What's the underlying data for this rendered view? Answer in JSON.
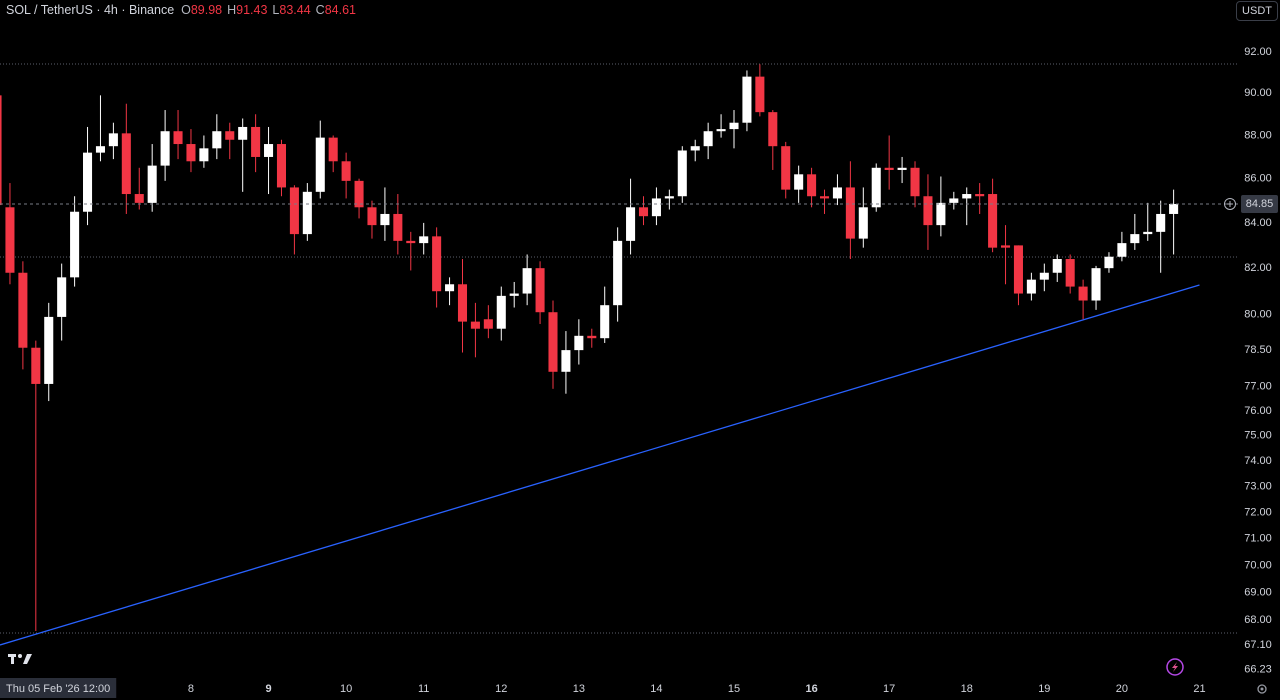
{
  "chart_data": {
    "type": "candlestick",
    "title": "SOL / TetherUS · 4h · Binance",
    "ohlc_legend": {
      "labels": [
        "O",
        "H",
        "L",
        "C"
      ],
      "values": [
        89.98,
        91.43,
        83.44,
        84.61
      ]
    },
    "currency": "USDT",
    "log_scale": true,
    "grid": false,
    "up_color": "#ffffff",
    "down_color": "#f23645",
    "x": [
      0,
      1,
      2,
      3,
      4,
      5,
      6,
      7,
      8,
      9,
      10,
      11,
      12,
      13,
      14,
      15,
      16,
      17,
      18,
      19,
      20,
      21,
      22,
      23,
      24,
      25,
      26,
      27,
      28,
      29,
      30,
      31,
      32,
      33,
      34,
      35,
      36,
      37,
      38,
      39,
      40,
      41,
      42,
      43,
      44,
      45,
      46,
      47,
      48,
      49,
      50,
      51,
      52,
      53,
      54,
      55,
      56,
      57,
      58,
      59,
      60,
      61,
      62,
      63,
      64,
      65,
      66,
      67,
      68,
      69,
      70,
      71,
      72,
      73,
      74,
      75,
      76,
      77,
      78,
      79,
      80,
      81,
      82,
      83,
      84,
      85,
      86,
      87,
      88,
      89,
      90,
      91
    ],
    "open": [
      89.9,
      84.7,
      81.8,
      78.6,
      77.1,
      79.9,
      81.6,
      84.5,
      87.2,
      87.5,
      88.1,
      85.3,
      84.9,
      86.6,
      88.2,
      87.6,
      86.8,
      87.4,
      88.2,
      87.8,
      88.4,
      87.0,
      87.6,
      85.6,
      83.5,
      85.4,
      87.9,
      86.8,
      85.9,
      84.7,
      83.9,
      84.4,
      83.2,
      83.1,
      83.4,
      81.0,
      81.3,
      79.7,
      79.8,
      79.4,
      80.8,
      80.9,
      82.0,
      80.1,
      77.6,
      78.5,
      79.1,
      79.0,
      80.4,
      83.2,
      84.7,
      84.3,
      85.1,
      85.2,
      87.3,
      87.5,
      88.2,
      88.3,
      88.6,
      90.8,
      89.1,
      87.5,
      85.5,
      86.2,
      85.2,
      85.1,
      85.6,
      83.3,
      84.7,
      86.5,
      86.4,
      86.5,
      85.2,
      83.9,
      84.9,
      85.1,
      85.3,
      85.3,
      83.0,
      83.0,
      80.9,
      81.5,
      81.8,
      82.4,
      81.2,
      80.6,
      82.0,
      82.5,
      83.1,
      83.5,
      83.6,
      84.4
    ],
    "high": [
      90.5,
      85.8,
      82.3,
      78.9,
      80.5,
      82.2,
      85.2,
      88.4,
      89.9,
      88.6,
      89.5,
      86.5,
      87.6,
      89.2,
      89.2,
      88.3,
      88.0,
      89.0,
      88.6,
      88.8,
      89.0,
      88.4,
      87.8,
      85.7,
      85.8,
      88.7,
      88.0,
      87.2,
      86.0,
      85.0,
      85.6,
      85.3,
      83.6,
      84.0,
      83.8,
      81.6,
      82.4,
      80.5,
      80.4,
      81.2,
      81.4,
      82.6,
      82.3,
      80.6,
      79.3,
      79.8,
      79.4,
      81.2,
      83.8,
      86.0,
      85.2,
      85.6,
      85.5,
      87.5,
      87.8,
      88.6,
      89.0,
      89.2,
      91.1,
      91.4,
      89.2,
      87.7,
      86.6,
      86.5,
      85.5,
      86.2,
      86.8,
      85.6,
      86.7,
      88.0,
      87.0,
      86.8,
      86.2,
      86.1,
      85.4,
      85.6,
      85.8,
      86.0,
      83.9,
      83.0,
      81.8,
      82.2,
      82.6,
      82.6,
      81.5,
      82.1,
      82.7,
      83.6,
      84.4,
      84.9,
      85.0,
      85.5
    ],
    "low": [
      84.5,
      81.3,
      77.7,
      67.6,
      76.4,
      78.9,
      81.2,
      83.9,
      86.8,
      86.9,
      84.4,
      84.6,
      84.5,
      85.9,
      86.9,
      86.3,
      86.5,
      86.9,
      86.9,
      85.4,
      86.3,
      85.3,
      85.2,
      82.6,
      83.2,
      85.1,
      86.3,
      85.1,
      84.2,
      83.3,
      83.2,
      82.6,
      81.9,
      82.6,
      80.3,
      80.4,
      78.4,
      78.2,
      79.0,
      78.9,
      80.3,
      80.4,
      79.6,
      76.9,
      76.7,
      77.9,
      78.6,
      78.8,
      79.7,
      82.6,
      83.9,
      83.9,
      84.6,
      84.9,
      86.8,
      86.9,
      87.9,
      87.4,
      88.2,
      88.9,
      86.4,
      85.1,
      84.9,
      84.7,
      84.4,
      84.8,
      82.4,
      82.9,
      84.5,
      85.5,
      85.8,
      84.7,
      82.8,
      83.4,
      84.6,
      83.9,
      84.4,
      82.7,
      81.3,
      80.4,
      80.6,
      81.0,
      81.4,
      80.9,
      79.8,
      80.2,
      81.8,
      82.3,
      82.8,
      83.2,
      81.8,
      82.6
    ],
    "close": [
      84.8,
      81.8,
      78.6,
      77.1,
      79.9,
      81.6,
      84.5,
      87.2,
      87.5,
      88.1,
      85.3,
      84.9,
      86.6,
      88.2,
      87.6,
      86.8,
      87.4,
      88.2,
      87.8,
      88.4,
      87.0,
      87.6,
      85.6,
      83.5,
      85.4,
      87.9,
      86.8,
      85.9,
      84.7,
      83.9,
      84.4,
      83.2,
      83.1,
      83.4,
      81.0,
      81.3,
      79.7,
      79.4,
      79.4,
      80.8,
      80.9,
      82.0,
      80.1,
      77.6,
      78.5,
      79.1,
      79.0,
      80.4,
      83.2,
      84.7,
      84.3,
      85.1,
      85.2,
      87.3,
      87.5,
      88.2,
      88.3,
      88.6,
      90.8,
      89.1,
      87.5,
      85.5,
      86.2,
      85.2,
      85.1,
      85.6,
      83.3,
      84.7,
      86.5,
      86.4,
      86.5,
      85.2,
      83.9,
      84.9,
      85.1,
      85.3,
      85.2,
      82.9,
      82.9,
      80.9,
      81.5,
      81.8,
      82.4,
      81.2,
      80.6,
      82.0,
      82.5,
      83.1,
      83.5,
      83.6,
      84.4,
      84.85
    ],
    "xlim": [
      0.23,
      95.98
    ],
    "ylim": [
      66.0,
      94.58
    ],
    "yticks": [
      {
        "value": 92,
        "label": "92.00"
      },
      {
        "value": 90,
        "label": "90.00"
      },
      {
        "value": 88,
        "label": "88.00"
      },
      {
        "value": 86,
        "label": "86.00"
      },
      {
        "value": 84,
        "label": "84.00"
      },
      {
        "value": 82,
        "label": "82.00"
      },
      {
        "value": 80,
        "label": "80.00"
      },
      {
        "value": 78.5,
        "label": "78.50"
      },
      {
        "value": 77,
        "label": "77.00"
      },
      {
        "value": 76,
        "label": "76.00"
      },
      {
        "value": 75,
        "label": "75.00"
      },
      {
        "value": 74,
        "label": "74.00"
      },
      {
        "value": 73,
        "label": "73.00"
      },
      {
        "value": 72,
        "label": "72.00"
      },
      {
        "value": 71,
        "label": "71.00"
      },
      {
        "value": 70,
        "label": "70.00"
      },
      {
        "value": 69,
        "label": "69.00"
      },
      {
        "value": 68,
        "label": "68.00"
      },
      {
        "value": 67.1,
        "label": "67.10"
      },
      {
        "value": 66.23,
        "label": "66.23"
      }
    ],
    "xticks": [
      {
        "value": 0,
        "label": "Thu 05 Feb '26   12:00",
        "highlight": true
      },
      {
        "value": 15,
        "label": "8"
      },
      {
        "value": 21,
        "label": "9",
        "bold": true
      },
      {
        "value": 27,
        "label": "10"
      },
      {
        "value": 33,
        "label": "11"
      },
      {
        "value": 39,
        "label": "12"
      },
      {
        "value": 45,
        "label": "13"
      },
      {
        "value": 51,
        "label": "14"
      },
      {
        "value": 57,
        "label": "15"
      },
      {
        "value": 63,
        "label": "16",
        "bold": true
      },
      {
        "value": 69,
        "label": "17"
      },
      {
        "value": 75,
        "label": "18"
      },
      {
        "value": 81,
        "label": "19"
      },
      {
        "value": 87,
        "label": "20"
      },
      {
        "value": 93,
        "label": "21"
      }
    ],
    "levels": [
      91.41,
      82.49,
      67.53
    ],
    "trendline": {
      "x": [
        0.23,
        93.0
      ],
      "y": [
        67.1,
        81.27
      ],
      "color": "#2962ff"
    }
  }
}
